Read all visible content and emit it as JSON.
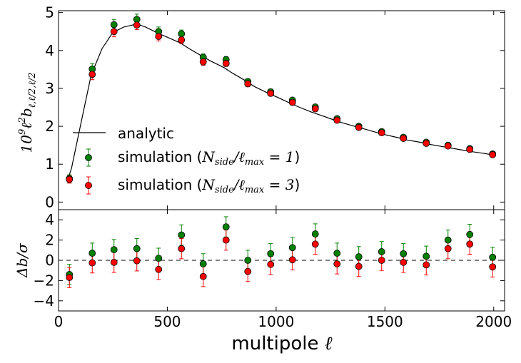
{
  "chart_data": [
    {
      "type": "scatter",
      "panel": "top",
      "ylabel": "10^9 ℓ^2 b_{ℓ,ℓ/2,ℓ/2}",
      "ylabel_parts": {
        "base": "10",
        "exp": "9",
        "ell": "ℓ",
        "sq": "2",
        "b": "b",
        "sub": "ℓ,ℓ/2,ℓ/2"
      },
      "xlim": [
        0,
        2050
      ],
      "ylim": [
        -0.2,
        5.05
      ],
      "yticks": [
        0,
        1,
        2,
        3,
        4,
        5
      ],
      "ytick_labels": [
        "0",
        "1",
        "2",
        "3",
        "4",
        "5"
      ],
      "analytic": {
        "x": [
          40,
          60,
          100,
          150,
          200,
          250,
          300,
          360,
          400,
          460,
          500,
          560,
          600,
          660,
          700,
          760,
          800,
          860,
          900,
          960,
          1000,
          1060,
          1100,
          1160,
          1200,
          1260,
          1300,
          1360,
          1400,
          1460,
          1500,
          1560,
          1600,
          1660,
          1700,
          1760,
          1800,
          1860,
          1900,
          1960,
          2000
        ],
        "y": [
          0.55,
          0.9,
          2.0,
          3.35,
          4.05,
          4.48,
          4.62,
          4.7,
          4.62,
          4.45,
          4.35,
          4.2,
          4.05,
          3.85,
          3.72,
          3.55,
          3.4,
          3.2,
          3.05,
          2.88,
          2.78,
          2.62,
          2.52,
          2.38,
          2.3,
          2.18,
          2.1,
          2.0,
          1.94,
          1.84,
          1.78,
          1.7,
          1.64,
          1.58,
          1.53,
          1.47,
          1.43,
          1.37,
          1.33,
          1.28,
          1.24
        ]
      },
      "series": [
        {
          "name": "simulation N_side/ℓ_max = 1",
          "color": "#008000",
          "x": [
            50,
            155,
            255,
            360,
            460,
            565,
            665,
            770,
            870,
            975,
            1075,
            1180,
            1280,
            1380,
            1485,
            1585,
            1690,
            1790,
            1890,
            1995
          ],
          "y": [
            0.62,
            3.51,
            4.68,
            4.82,
            4.5,
            4.44,
            3.82,
            3.76,
            3.18,
            2.91,
            2.69,
            2.51,
            2.2,
            2.0,
            1.86,
            1.71,
            1.58,
            1.5,
            1.41,
            1.27
          ],
          "err": [
            0.1,
            0.14,
            0.14,
            0.14,
            0.12,
            0.1,
            0.09,
            0.08,
            0.07,
            0.07,
            0.06,
            0.06,
            0.05,
            0.05,
            0.05,
            0.05,
            0.04,
            0.04,
            0.04,
            0.04
          ]
        },
        {
          "name": "simulation N_side/ℓ_max = 3",
          "color": "#ff0000",
          "x": [
            50,
            155,
            255,
            360,
            460,
            565,
            665,
            770,
            870,
            975,
            1075,
            1180,
            1280,
            1380,
            1485,
            1585,
            1690,
            1790,
            1890,
            1995
          ],
          "y": [
            0.6,
            3.37,
            4.5,
            4.67,
            4.37,
            4.28,
            3.7,
            3.66,
            3.12,
            2.87,
            2.63,
            2.46,
            2.16,
            1.97,
            1.83,
            1.68,
            1.55,
            1.48,
            1.39,
            1.25
          ],
          "err": [
            0.1,
            0.14,
            0.14,
            0.12,
            0.12,
            0.1,
            0.09,
            0.08,
            0.07,
            0.07,
            0.06,
            0.06,
            0.05,
            0.05,
            0.05,
            0.05,
            0.04,
            0.04,
            0.04,
            0.04
          ]
        }
      ],
      "legend": {
        "position": "lower-left",
        "entries": [
          {
            "label": "analytic",
            "marker": "line",
            "color": "#000000"
          },
          {
            "prefix": "simulation (",
            "math": "N_side/ℓ_max = 1",
            "suffix": ")",
            "marker": "dot",
            "color": "#008000"
          },
          {
            "prefix": "simulation (",
            "math": "N_side/ℓ_max = 3",
            "suffix": ")",
            "marker": "dot",
            "color": "#ff0000"
          }
        ]
      }
    },
    {
      "type": "scatter",
      "panel": "bottom",
      "ylabel": "Δb/σ",
      "xlabel": "multipole ℓ",
      "xlim": [
        0,
        2050
      ],
      "ylim": [
        -5,
        5
      ],
      "xticks": [
        0,
        500,
        1000,
        1500,
        2000
      ],
      "xtick_labels": [
        "0",
        "500",
        "1000",
        "1500",
        "2000"
      ],
      "yticks": [
        -4,
        -2,
        0,
        2,
        4
      ],
      "ytick_labels": [
        "−4",
        "−2",
        "0",
        "2",
        "4"
      ],
      "reference_line": 0,
      "series": [
        {
          "name": "N_side/ℓ_max = 1",
          "color": "#008000",
          "x": [
            50,
            155,
            255,
            360,
            460,
            565,
            665,
            770,
            870,
            975,
            1075,
            1180,
            1280,
            1380,
            1485,
            1585,
            1690,
            1790,
            1890,
            1995
          ],
          "y": [
            -1.4,
            0.7,
            1.05,
            1.15,
            0.2,
            2.5,
            -0.35,
            3.3,
            0.0,
            0.65,
            1.25,
            2.6,
            0.7,
            0.35,
            0.85,
            0.65,
            0.4,
            2.0,
            2.55,
            0.3
          ],
          "err": [
            1.0,
            1.0,
            1.0,
            1.0,
            1.0,
            1.0,
            1.0,
            1.0,
            1.0,
            1.0,
            1.0,
            1.0,
            1.0,
            1.0,
            1.0,
            1.0,
            1.0,
            1.0,
            1.0,
            1.0
          ]
        },
        {
          "name": "N_side/ℓ_max = 3",
          "color": "#ff0000",
          "x": [
            50,
            155,
            255,
            360,
            460,
            565,
            665,
            770,
            870,
            975,
            1075,
            1180,
            1280,
            1380,
            1485,
            1585,
            1690,
            1790,
            1890,
            1995
          ],
          "y": [
            -1.7,
            -0.25,
            -0.2,
            -0.05,
            -0.9,
            1.15,
            -1.6,
            2.0,
            -1.1,
            -0.4,
            0.05,
            1.6,
            -0.35,
            -0.6,
            0.0,
            -0.2,
            -0.45,
            1.15,
            1.6,
            -0.65
          ],
          "err": [
            1.0,
            1.0,
            1.0,
            1.0,
            1.0,
            1.0,
            1.0,
            1.0,
            1.0,
            1.0,
            1.0,
            1.0,
            1.0,
            1.0,
            1.0,
            1.0,
            1.0,
            1.0,
            1.0,
            1.0
          ]
        }
      ]
    }
  ]
}
